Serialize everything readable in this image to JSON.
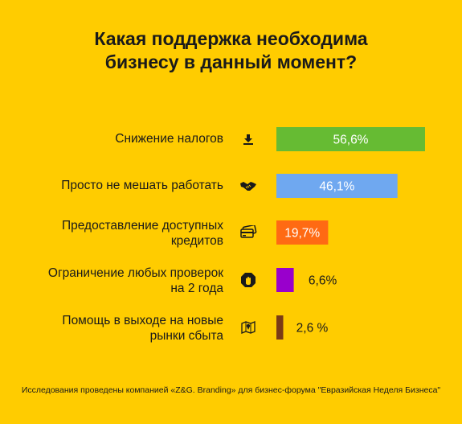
{
  "title": {
    "line1": "Какая поддержка необходима",
    "line2": "бизнесу в данный момент?"
  },
  "chart_data": {
    "type": "bar",
    "orientation": "horizontal",
    "title": "Какая поддержка необходима бизнесу в данный момент?",
    "categories": [
      "Снижение налогов",
      "Просто  не мешать работать",
      "Предоставление доступных кредитов",
      "Ограничение любых проверок на 2 года",
      "Помощь в выходе на новые рынки сбыта"
    ],
    "values": [
      56.6,
      46.1,
      19.7,
      6.6,
      2.6
    ],
    "value_labels": [
      "56,6%",
      "46,1%",
      "19,7%",
      "6,6%",
      "2,6 %"
    ],
    "bar_colors": [
      "#66BB33",
      "#6FA8F0",
      "#FF6A13",
      "#9900CC",
      "#7A3B16"
    ],
    "label_lines": [
      [
        "Снижение налогов"
      ],
      [
        "Просто  не мешать работать"
      ],
      [
        "Предоставление доступных",
        "кредитов"
      ],
      [
        "Ограничение любых проверок",
        "на 2 года"
      ],
      [
        "Помощь в выходе на новые",
        "рынки сбыта"
      ]
    ],
    "icons": [
      "download-icon",
      "handshake-icon",
      "credit-card-icon",
      "stop-hand-icon",
      "map-pin-icon"
    ],
    "legend": "none",
    "grid": false
  },
  "footer": "Исследования проведены компанией «Z&G. Branding» для бизнес-форума \"Евразийская Неделя Бизнеса\""
}
